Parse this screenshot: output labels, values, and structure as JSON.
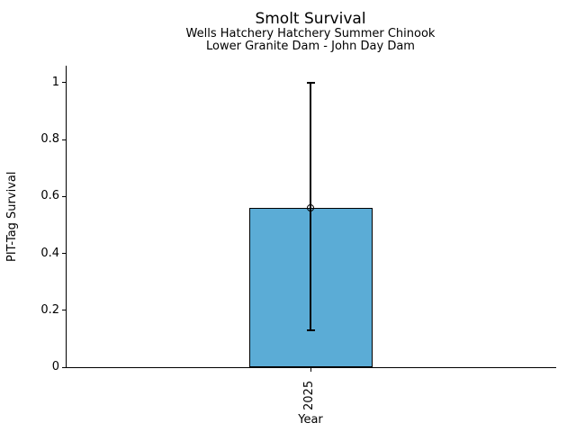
{
  "chart_data": {
    "type": "bar",
    "title": "Smolt Survival",
    "subtitle1": "Wells Hatchery Hatchery Summer Chinook",
    "subtitle2": "Lower Granite Dam - John Day Dam",
    "xlabel": "Year",
    "ylabel": "PIT-Tag Survival",
    "categories": [
      "2025"
    ],
    "values": [
      0.56
    ],
    "error_low": [
      0.13
    ],
    "error_high": [
      1.0
    ],
    "ylim": [
      0,
      1.06
    ],
    "yticks": [
      0,
      0.2,
      0.4,
      0.6,
      0.8,
      1
    ],
    "ytick_labels": [
      "0",
      "0.2",
      "0.4",
      "0.6",
      "0.8",
      "1"
    ],
    "bar_color": "#5BACD6",
    "bar_edge_color": "#000000",
    "error_color": "#000000",
    "marker": "open-circle",
    "grid": false,
    "legend": "none",
    "background_color": "#ffffff"
  }
}
